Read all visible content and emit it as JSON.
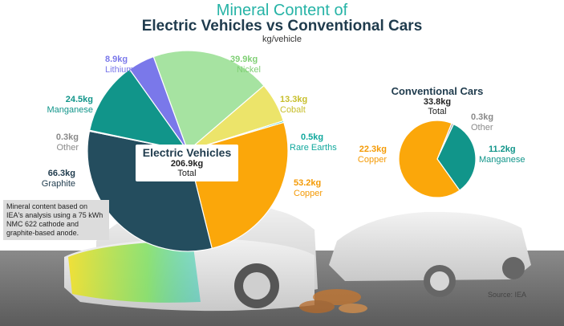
{
  "header": {
    "title_line1": "Mineral Content of",
    "title_line2": "Electric Vehicles vs Conventional Cars",
    "subtitle": "kg/vehicle"
  },
  "note": "Mineral content based on IEA's analysis using a 75 kWh NMC 622 cathode and graphite-based anode.",
  "source": "Source: IEA",
  "chart_data": [
    {
      "type": "pie",
      "title": "Electric Vehicles",
      "total_value": "206.9kg",
      "total_label": "Total",
      "slices": [
        {
          "name": "Nickel",
          "value": 39.9,
          "label": "39.9kg",
          "color": "#a6e3a1"
        },
        {
          "name": "Cobalt",
          "value": 13.3,
          "label": "13.3kg",
          "color": "#ece46a"
        },
        {
          "name": "Rare Earths",
          "value": 0.5,
          "label": "0.5kg",
          "color": "#18c3b8"
        },
        {
          "name": "Copper",
          "value": 53.2,
          "label": "53.2kg",
          "color": "#fba70a"
        },
        {
          "name": "Graphite",
          "value": 66.3,
          "label": "66.3kg",
          "color": "#244d5e"
        },
        {
          "name": "Other",
          "value": 0.3,
          "label": "0.3kg",
          "color": "#a8a8a8"
        },
        {
          "name": "Manganese",
          "value": 24.5,
          "label": "24.5kg",
          "color": "#11958a"
        },
        {
          "name": "Lithium",
          "value": 8.9,
          "label": "8.9kg",
          "color": "#7a78ea"
        }
      ]
    },
    {
      "type": "pie",
      "title": "Conventional Cars",
      "total_value": "33.8kg",
      "total_label": "Total",
      "slices": [
        {
          "name": "Other",
          "value": 0.3,
          "label": "0.3kg",
          "color": "#a8a8a8"
        },
        {
          "name": "Manganese",
          "value": 11.2,
          "label": "11.2kg",
          "color": "#11958a"
        },
        {
          "name": "Copper",
          "value": 22.3,
          "label": "22.3kg",
          "color": "#fba70a"
        }
      ]
    }
  ]
}
